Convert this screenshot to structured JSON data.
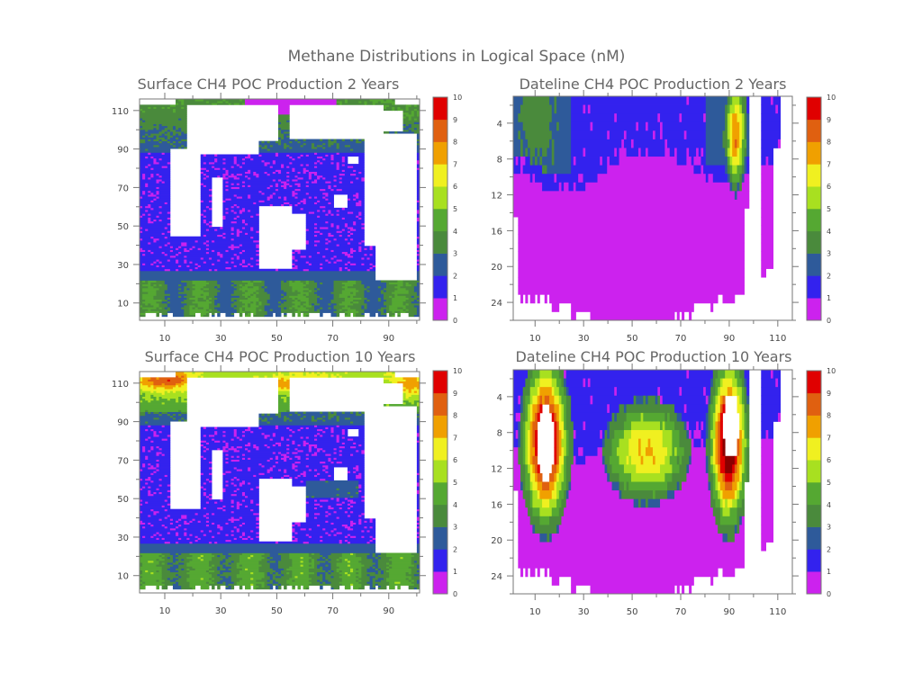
{
  "title": "Methane Distributions in Logical Space (nM)",
  "colorbar": {
    "levels": [
      "0",
      "1",
      "2",
      "3",
      "4",
      "5",
      "6",
      "7",
      "8",
      "9",
      "10"
    ],
    "colors": [
      "#cc22ee",
      "#3322ee",
      "#2e5a9a",
      "#4a8a3c",
      "#55a832",
      "#a8e020",
      "#f0f020",
      "#f0a000",
      "#e06010",
      "#e00000",
      "#8a0000"
    ]
  },
  "chart_data": [
    {
      "type": "heatmap",
      "title": "Surface CH4 POC Production 2 Years",
      "xlabel": "",
      "ylabel": "",
      "xlim": [
        1,
        101
      ],
      "ylim": [
        1,
        116
      ],
      "xticks": [
        10,
        30,
        50,
        70,
        90
      ],
      "yticks": [
        10,
        30,
        50,
        70,
        90,
        110
      ],
      "value_range": [
        0,
        10
      ],
      "dominant_values": {
        "ocean_interior": 1,
        "southern_band": 3,
        "northern_ocean": 2,
        "arctic_patch": 0
      }
    },
    {
      "type": "heatmap",
      "title": "Dateline CH4 POC Production 2 Years",
      "xlabel": "",
      "ylabel": "",
      "xlim": [
        1,
        116
      ],
      "ylim": [
        26,
        1
      ],
      "xticks": [
        10,
        30,
        50,
        70,
        90,
        110
      ],
      "yticks": [
        4,
        8,
        12,
        16,
        20,
        24
      ],
      "value_range": [
        0,
        10
      ],
      "dominant_values": {
        "deep": 0,
        "upper": 1,
        "north_margin_max": 7
      }
    },
    {
      "type": "heatmap",
      "title": "Surface CH4 POC Production 10 Years",
      "xlabel": "",
      "ylabel": "",
      "xlim": [
        1,
        101
      ],
      "ylim": [
        1,
        116
      ],
      "xticks": [
        10,
        30,
        50,
        70,
        90
      ],
      "yticks": [
        10,
        30,
        50,
        70,
        90,
        110
      ],
      "value_range": [
        0,
        10
      ],
      "dominant_values": {
        "ocean_interior": 1,
        "southern_band": 3,
        "northern_ocean": 3,
        "arctic_max": 9
      }
    },
    {
      "type": "heatmap",
      "title": "Dateline CH4 POC Production 10 Years",
      "xlabel": "",
      "ylabel": "",
      "xlim": [
        1,
        116
      ],
      "ylim": [
        26,
        1
      ],
      "xticks": [
        10,
        30,
        50,
        70,
        90,
        110
      ],
      "yticks": [
        4,
        8,
        12,
        16,
        20,
        24
      ],
      "value_range": [
        0,
        10
      ],
      "dominant_values": {
        "deep": 0,
        "upper": 1,
        "southern_max": 10,
        "equatorial_max": 6,
        "northern_max": 10
      }
    }
  ]
}
